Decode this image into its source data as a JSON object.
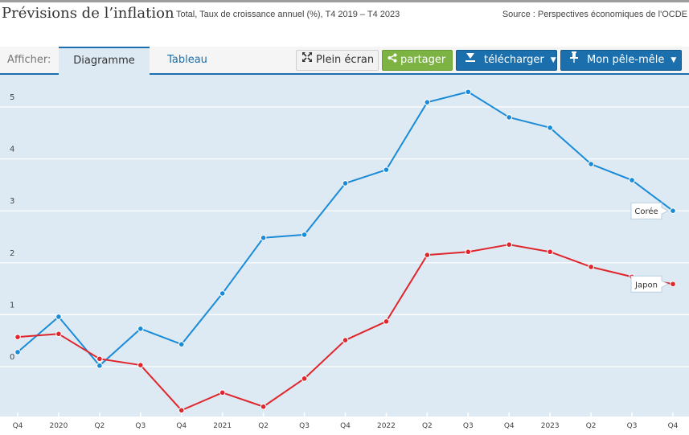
{
  "header": {
    "title": "Prévisions de l’inflation",
    "subtitle": "Total, Taux de croissance annuel (%), T4 2019 – T4 2023",
    "source": "Source : Perspectives économiques de l'OCDE"
  },
  "toolbar": {
    "afficher_label": "Afficher:",
    "tabs": [
      {
        "label": "Diagramme",
        "active": true
      },
      {
        "label": "Tableau",
        "active": false
      }
    ],
    "buttons": {
      "fullscreen": {
        "label": "Plein écran",
        "icon": "expand-icon"
      },
      "share": {
        "label": "partager",
        "icon": "share-icon"
      },
      "download": {
        "label": "télécharger",
        "icon": "download-icon"
      },
      "pin": {
        "label": "Mon pêle-mêle",
        "icon": "pin-icon"
      }
    },
    "caret": "▼"
  },
  "colors": {
    "coree": "#1a8bd6",
    "japon": "#e0262d",
    "accent": "#1a6fac",
    "share_green": "#7cb342",
    "plot_bg": "#deeaf3"
  },
  "chart_data": {
    "type": "line",
    "title": "Prévisions de l’inflation",
    "subtitle": "Total, Taux de croissance annuel (%), T4 2019 – T4 2023",
    "xlabel": "",
    "ylabel": "",
    "categories": [
      "Q4",
      "2020",
      "Q2",
      "Q3",
      "Q4",
      "2021",
      "Q2",
      "Q3",
      "Q4",
      "2022",
      "Q2",
      "Q3",
      "Q4",
      "2023",
      "Q2",
      "Q3",
      "Q4"
    ],
    "y_ticks": [
      "0",
      "1",
      "2",
      "3",
      "4",
      "5"
    ],
    "ylim": [
      -0.95,
      5.6
    ],
    "grid": true,
    "series": [
      {
        "name": "Corée",
        "values": [
          0.28,
          0.96,
          0.02,
          0.73,
          0.43,
          1.41,
          2.48,
          2.54,
          3.53,
          3.79,
          5.09,
          5.29,
          4.8,
          4.6,
          3.9,
          3.59,
          3.0
        ]
      },
      {
        "name": "Japon",
        "values": [
          0.57,
          0.63,
          0.15,
          0.03,
          -0.84,
          -0.5,
          -0.77,
          -0.23,
          0.51,
          0.87,
          2.15,
          2.21,
          2.35,
          2.21,
          1.92,
          1.73,
          1.59
        ]
      }
    ]
  }
}
